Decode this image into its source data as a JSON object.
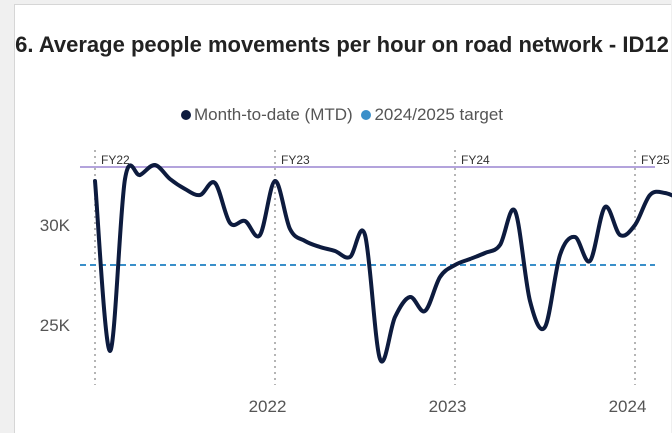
{
  "chart_title": "6. Average people movements per hour on road network - ID12",
  "legend": {
    "items": [
      {
        "label": "Month-to-date (MTD)",
        "color": "#0d1b3e"
      },
      {
        "label": "2024/2025 target",
        "color": "#3a8fc9"
      }
    ]
  },
  "chart_data": {
    "type": "line",
    "title": "6. Average people movements per hour on road network - ID12",
    "xlabel": "",
    "ylabel": "",
    "ylim": [
      22000,
      34500
    ],
    "y_ticks": [
      {
        "value": 25000,
        "label": "25K"
      },
      {
        "value": 30000,
        "label": "30K"
      }
    ],
    "x_ticks": [
      {
        "year": 2022,
        "label": "2022"
      },
      {
        "year": 2023,
        "label": "2023"
      },
      {
        "year": 2024,
        "label": "2024"
      }
    ],
    "fiscal_year_markers": [
      {
        "label": "FY22",
        "date": "2021-07-01"
      },
      {
        "label": "FY23",
        "date": "2022-07-01"
      },
      {
        "label": "FY24",
        "date": "2023-07-01"
      },
      {
        "label": "FY25",
        "date": "2024-07-01"
      }
    ],
    "reference_lines": [
      {
        "value": 32900,
        "color": "#b3a3dc",
        "style": "solid"
      },
      {
        "name": "2024/2025 target",
        "value": 28000,
        "color": "#3a8fc9",
        "style": "dashed"
      }
    ],
    "series": [
      {
        "name": "Month-to-date (MTD)",
        "color": "#0d1b3e",
        "points": [
          {
            "x": "2021-07-01",
            "y": 32200
          },
          {
            "x": "2021-08-01",
            "y": 23700
          },
          {
            "x": "2021-09-01",
            "y": 32300
          },
          {
            "x": "2021-10-01",
            "y": 32500
          },
          {
            "x": "2021-11-01",
            "y": 33000
          },
          {
            "x": "2021-12-01",
            "y": 32300
          },
          {
            "x": "2022-01-01",
            "y": 31800
          },
          {
            "x": "2022-02-01",
            "y": 31500
          },
          {
            "x": "2022-03-01",
            "y": 32100
          },
          {
            "x": "2022-04-01",
            "y": 30100
          },
          {
            "x": "2022-05-01",
            "y": 30200
          },
          {
            "x": "2022-06-01",
            "y": 29500
          },
          {
            "x": "2022-07-01",
            "y": 32200
          },
          {
            "x": "2022-08-01",
            "y": 29800
          },
          {
            "x": "2022-09-01",
            "y": 29200
          },
          {
            "x": "2022-10-01",
            "y": 28900
          },
          {
            "x": "2022-11-01",
            "y": 28700
          },
          {
            "x": "2022-12-01",
            "y": 28400
          },
          {
            "x": "2023-01-01",
            "y": 29500
          },
          {
            "x": "2023-02-01",
            "y": 23300
          },
          {
            "x": "2023-03-01",
            "y": 25400
          },
          {
            "x": "2023-04-01",
            "y": 26400
          },
          {
            "x": "2023-05-01",
            "y": 25700
          },
          {
            "x": "2023-06-01",
            "y": 27400
          },
          {
            "x": "2023-07-01",
            "y": 28000
          },
          {
            "x": "2023-08-01",
            "y": 28300
          },
          {
            "x": "2023-09-01",
            "y": 28600
          },
          {
            "x": "2023-10-01",
            "y": 29000
          },
          {
            "x": "2023-11-01",
            "y": 30700
          },
          {
            "x": "2023-12-01",
            "y": 26200
          },
          {
            "x": "2024-01-01",
            "y": 24900
          },
          {
            "x": "2024-02-01",
            "y": 28500
          },
          {
            "x": "2024-03-01",
            "y": 29400
          },
          {
            "x": "2024-04-01",
            "y": 28200
          },
          {
            "x": "2024-05-01",
            "y": 30900
          },
          {
            "x": "2024-06-01",
            "y": 29500
          },
          {
            "x": "2024-07-01",
            "y": 30000
          },
          {
            "x": "2024-08-01",
            "y": 31500
          },
          {
            "x": "2024-09-01",
            "y": 31600
          },
          {
            "x": "2024-10-01",
            "y": 31300
          }
        ]
      }
    ]
  }
}
